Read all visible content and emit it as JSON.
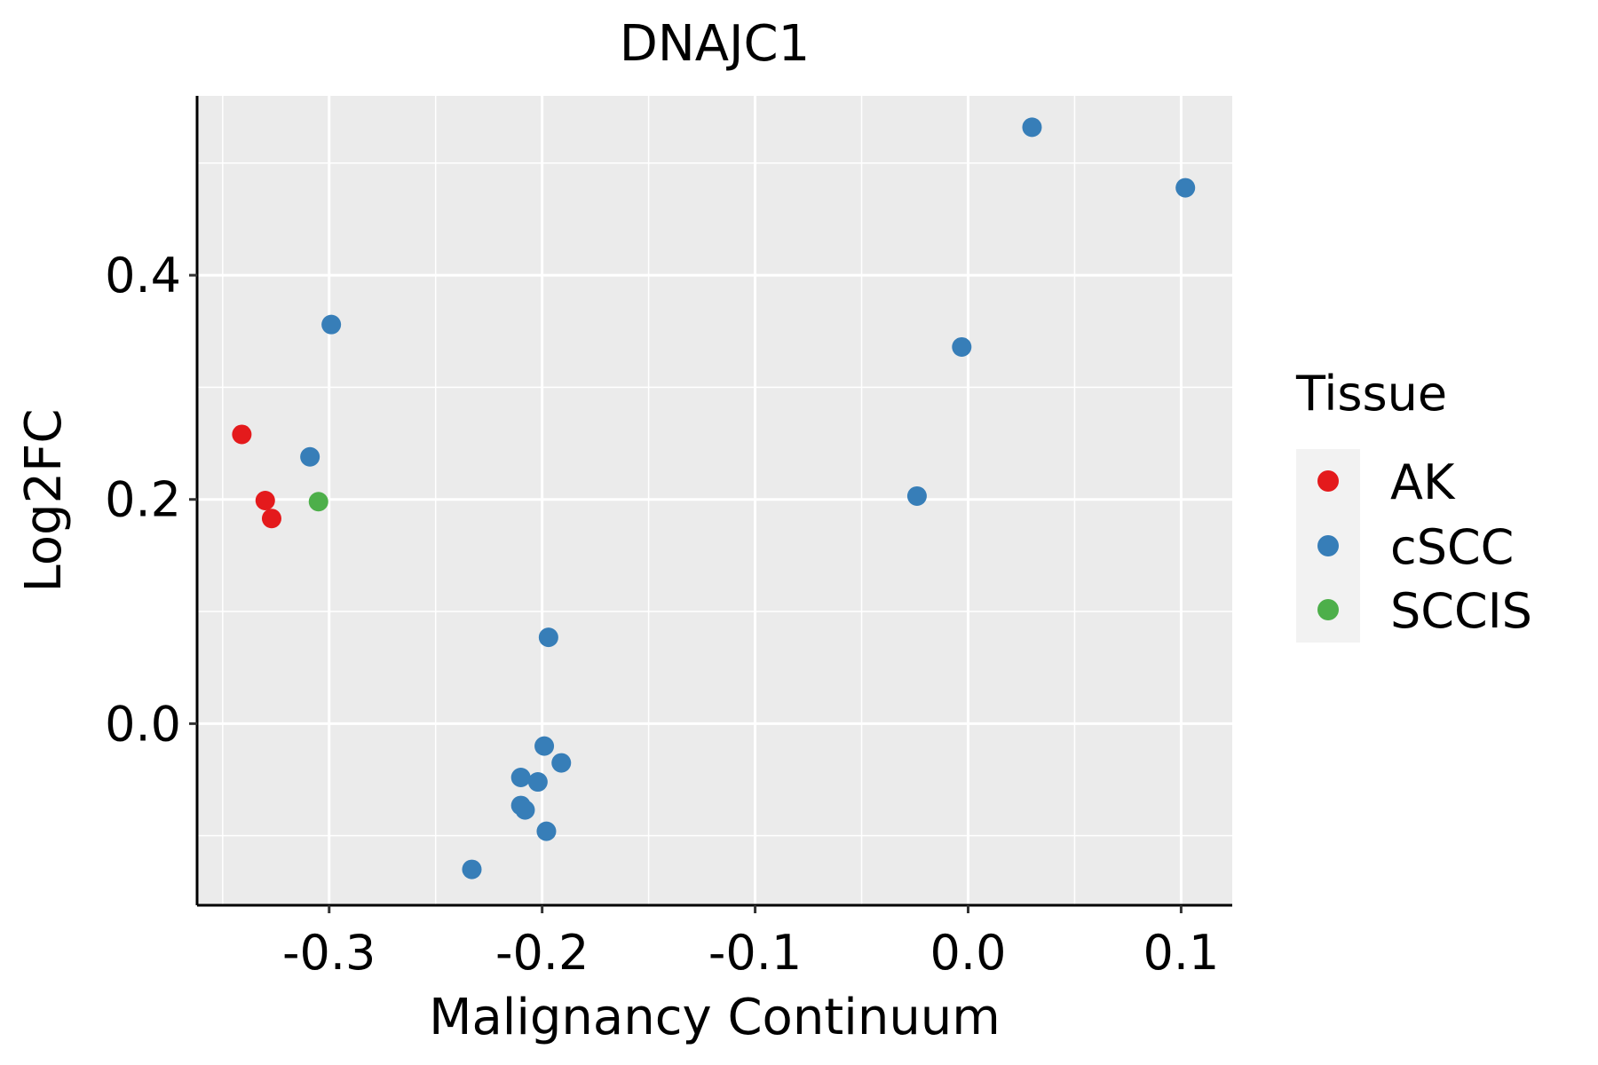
{
  "chart_data": {
    "type": "scatter",
    "title": "DNAJC1",
    "xlabel": "Malignancy Continuum",
    "ylabel": "Log2FC",
    "xlim": [
      -0.362,
      0.124
    ],
    "ylim": [
      -0.162,
      0.56
    ],
    "x_ticks": [
      -0.3,
      -0.2,
      -0.1,
      0.0,
      0.1
    ],
    "x_tick_labels": [
      "-0.3",
      "-0.2",
      "-0.1",
      "0.0",
      "0.1"
    ],
    "y_ticks": [
      0.0,
      0.2,
      0.4
    ],
    "y_tick_labels": [
      "0.0",
      "0.2",
      "0.4"
    ],
    "x_minor_ticks": [
      -0.35,
      -0.25,
      -0.15,
      -0.05,
      0.05
    ],
    "y_minor_ticks": [
      -0.1,
      0.1,
      0.3,
      0.5
    ],
    "grid": true,
    "legend": {
      "title": "Tissue",
      "position": "right",
      "entries": [
        {
          "label": "AK",
          "color": "#E41A1C"
        },
        {
          "label": "cSCC",
          "color": "#377EB8"
        },
        {
          "label": "SCCIS",
          "color": "#4DAF4A"
        }
      ]
    },
    "series": [
      {
        "name": "AK",
        "color": "#E41A1C",
        "points": [
          {
            "x": -0.341,
            "y": 0.258
          },
          {
            "x": -0.33,
            "y": 0.199
          },
          {
            "x": -0.327,
            "y": 0.183
          }
        ]
      },
      {
        "name": "cSCC",
        "color": "#377EB8",
        "points": [
          {
            "x": -0.299,
            "y": 0.356
          },
          {
            "x": -0.309,
            "y": 0.238
          },
          {
            "x": 0.03,
            "y": 0.532
          },
          {
            "x": 0.102,
            "y": 0.478
          },
          {
            "x": -0.003,
            "y": 0.336
          },
          {
            "x": -0.024,
            "y": 0.203
          },
          {
            "x": -0.197,
            "y": 0.077
          },
          {
            "x": -0.199,
            "y": -0.02
          },
          {
            "x": -0.191,
            "y": -0.035
          },
          {
            "x": -0.21,
            "y": -0.048
          },
          {
            "x": -0.202,
            "y": -0.052
          },
          {
            "x": -0.21,
            "y": -0.073
          },
          {
            "x": -0.208,
            "y": -0.077
          },
          {
            "x": -0.198,
            "y": -0.096
          },
          {
            "x": -0.233,
            "y": -0.13
          }
        ]
      },
      {
        "name": "SCCIS",
        "color": "#4DAF4A",
        "points": [
          {
            "x": -0.305,
            "y": 0.198
          }
        ]
      }
    ]
  }
}
